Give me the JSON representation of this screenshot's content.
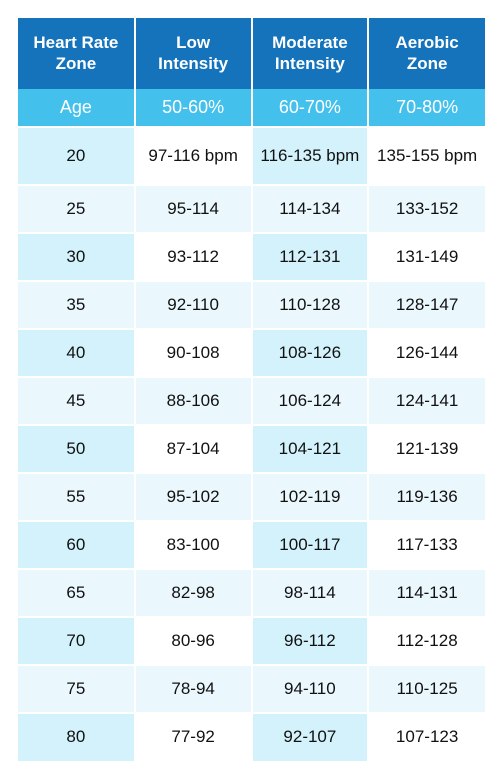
{
  "table": {
    "type": "table",
    "header_bg": "#1473bb",
    "subheader_bg": "#43c1ec",
    "header_text_color": "#ffffff",
    "stripe_dark": "#d4f2fb",
    "stripe_light": "#eaf8fd",
    "stripe_white": "#ffffff",
    "border_color": "#ffffff",
    "font_family": "Helvetica Neue",
    "header_fontsize_pt": 13,
    "body_fontsize_pt": 13,
    "columns": [
      {
        "title": "Heart Rate Zone",
        "sub": "Age"
      },
      {
        "title": "Low Intensity",
        "sub": "50-60%"
      },
      {
        "title": "Moderate Intensity",
        "sub": "60-70%"
      },
      {
        "title": "Aerobic Zone",
        "sub": "70-80%"
      }
    ],
    "rows": [
      {
        "age": "20",
        "low": "97-116 bpm",
        "mod": "116-135 bpm",
        "aer": "135-155 bpm"
      },
      {
        "age": "25",
        "low": "95-114",
        "mod": "114-134",
        "aer": "133-152"
      },
      {
        "age": "30",
        "low": "93-112",
        "mod": "112-131",
        "aer": "131-149"
      },
      {
        "age": "35",
        "low": "92-110",
        "mod": "110-128",
        "aer": "128-147"
      },
      {
        "age": "40",
        "low": "90-108",
        "mod": "108-126",
        "aer": "126-144"
      },
      {
        "age": "45",
        "low": "88-106",
        "mod": "106-124",
        "aer": "124-141"
      },
      {
        "age": "50",
        "low": "87-104",
        "mod": "104-121",
        "aer": "121-139"
      },
      {
        "age": "55",
        "low": "95-102",
        "mod": "102-119",
        "aer": "119-136"
      },
      {
        "age": "60",
        "low": "83-100",
        "mod": "100-117",
        "aer": "117-133"
      },
      {
        "age": "65",
        "low": "82-98",
        "mod": "98-114",
        "aer": "114-131"
      },
      {
        "age": "70",
        "low": "80-96",
        "mod": "96-112",
        "aer": "112-128"
      },
      {
        "age": "75",
        "low": "78-94",
        "mod": "94-110",
        "aer": "110-125"
      },
      {
        "age": "80",
        "low": "77-92",
        "mod": "92-107",
        "aer": "107-123"
      }
    ]
  }
}
